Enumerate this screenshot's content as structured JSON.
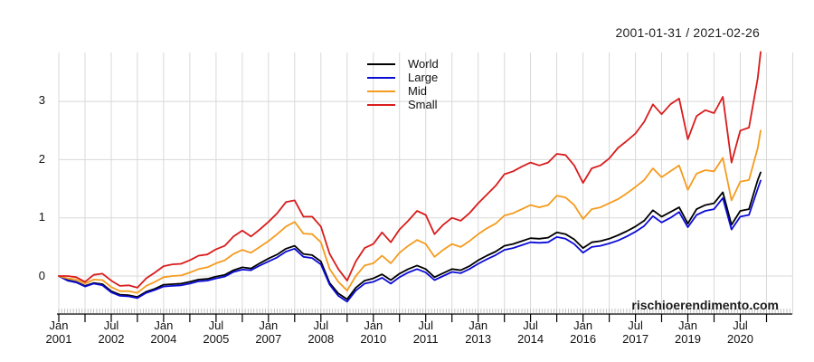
{
  "title": "2001-01-31 / 2021-02-26",
  "watermark": "rischioerendimento.com",
  "chart_data": {
    "type": "line",
    "title": "2001-01-31 / 2021-02-26",
    "xlabel": "",
    "ylabel": "",
    "grid": true,
    "legend_position": "top-center",
    "ylim": [
      -0.65,
      3.85
    ],
    "y_ticks": [
      "0",
      "1",
      "2",
      "3"
    ],
    "y_tick_values": [
      0,
      1,
      2,
      3
    ],
    "x_range_months_since_2001_01": [
      0,
      241
    ],
    "x_sample": {
      "start": 0,
      "step": 3,
      "count": 81,
      "final_month": 241
    },
    "x_ticks": [
      {
        "m": 0,
        "line1": "Jan",
        "line2": "2001"
      },
      {
        "m": 18,
        "line1": "Jul",
        "line2": "2002"
      },
      {
        "m": 36,
        "line1": "Jan",
        "line2": "2004"
      },
      {
        "m": 54,
        "line1": "Jul",
        "line2": "2005"
      },
      {
        "m": 72,
        "line1": "Jan",
        "line2": "2007"
      },
      {
        "m": 90,
        "line1": "Jul",
        "line2": "2008"
      },
      {
        "m": 108,
        "line1": "Jan",
        "line2": "2010"
      },
      {
        "m": 126,
        "line1": "Jul",
        "line2": "2011"
      },
      {
        "m": 144,
        "line1": "Jan",
        "line2": "2013"
      },
      {
        "m": 162,
        "line1": "Jul",
        "line2": "2014"
      },
      {
        "m": 180,
        "line1": "Jan",
        "line2": "2016"
      },
      {
        "m": 198,
        "line1": "Jul",
        "line2": "2017"
      },
      {
        "m": 216,
        "line1": "Jan",
        "line2": "2019"
      },
      {
        "m": 234,
        "line1": "Jul",
        "line2": "2020"
      }
    ],
    "colors": {
      "grid": "#d8d8d8",
      "axis": "#000000",
      "minor_tick": "#aaaaaa"
    },
    "series": [
      {
        "name": "World",
        "color": "#000000",
        "values": [
          0.0,
          -0.07,
          -0.1,
          -0.17,
          -0.12,
          -0.14,
          -0.26,
          -0.32,
          -0.33,
          -0.36,
          -0.27,
          -0.22,
          -0.15,
          -0.14,
          -0.13,
          -0.1,
          -0.06,
          -0.05,
          -0.01,
          0.02,
          0.1,
          0.15,
          0.13,
          0.22,
          0.3,
          0.37,
          0.47,
          0.52,
          0.38,
          0.36,
          0.25,
          -0.12,
          -0.3,
          -0.4,
          -0.2,
          -0.08,
          -0.04,
          0.03,
          -0.07,
          0.04,
          0.12,
          0.18,
          0.12,
          -0.02,
          0.05,
          0.12,
          0.1,
          0.17,
          0.27,
          0.35,
          0.42,
          0.52,
          0.55,
          0.6,
          0.65,
          0.64,
          0.66,
          0.75,
          0.72,
          0.63,
          0.48,
          0.58,
          0.6,
          0.64,
          0.7,
          0.77,
          0.85,
          0.95,
          1.13,
          1.02,
          1.1,
          1.18,
          0.9,
          1.15,
          1.22,
          1.25,
          1.44,
          0.88,
          1.12,
          1.15,
          1.65,
          1.78
        ]
      },
      {
        "name": "Large",
        "color": "#0b0bd6",
        "values": [
          0.0,
          -0.08,
          -0.11,
          -0.18,
          -0.13,
          -0.16,
          -0.28,
          -0.34,
          -0.35,
          -0.38,
          -0.29,
          -0.24,
          -0.18,
          -0.17,
          -0.16,
          -0.13,
          -0.09,
          -0.08,
          -0.04,
          -0.01,
          0.07,
          0.11,
          0.1,
          0.18,
          0.25,
          0.32,
          0.42,
          0.47,
          0.33,
          0.31,
          0.2,
          -0.15,
          -0.34,
          -0.44,
          -0.25,
          -0.13,
          -0.1,
          -0.03,
          -0.13,
          -0.02,
          0.06,
          0.12,
          0.06,
          -0.07,
          0.0,
          0.07,
          0.05,
          0.12,
          0.21,
          0.29,
          0.36,
          0.45,
          0.48,
          0.53,
          0.58,
          0.57,
          0.58,
          0.67,
          0.64,
          0.55,
          0.4,
          0.5,
          0.52,
          0.56,
          0.61,
          0.68,
          0.76,
          0.86,
          1.03,
          0.92,
          1.0,
          1.1,
          0.84,
          1.05,
          1.12,
          1.15,
          1.34,
          0.8,
          1.02,
          1.05,
          1.5,
          1.64
        ]
      },
      {
        "name": "Mid",
        "color": "#f59b1e",
        "values": [
          0.0,
          -0.04,
          -0.06,
          -0.13,
          -0.06,
          -0.07,
          -0.19,
          -0.26,
          -0.26,
          -0.29,
          -0.17,
          -0.1,
          -0.02,
          0.0,
          0.01,
          0.06,
          0.12,
          0.15,
          0.22,
          0.27,
          0.38,
          0.45,
          0.4,
          0.5,
          0.6,
          0.72,
          0.85,
          0.93,
          0.73,
          0.72,
          0.58,
          0.12,
          -0.1,
          -0.25,
          0.0,
          0.18,
          0.22,
          0.35,
          0.22,
          0.4,
          0.52,
          0.62,
          0.55,
          0.33,
          0.45,
          0.55,
          0.5,
          0.6,
          0.72,
          0.82,
          0.9,
          1.04,
          1.08,
          1.15,
          1.22,
          1.18,
          1.22,
          1.38,
          1.35,
          1.22,
          0.98,
          1.15,
          1.18,
          1.25,
          1.32,
          1.42,
          1.53,
          1.65,
          1.85,
          1.7,
          1.8,
          1.9,
          1.48,
          1.76,
          1.82,
          1.8,
          2.03,
          1.3,
          1.62,
          1.65,
          2.2,
          2.5
        ]
      },
      {
        "name": "Small",
        "color": "#d91c1c",
        "values": [
          0.0,
          0.0,
          -0.02,
          -0.1,
          0.02,
          0.04,
          -0.08,
          -0.17,
          -0.16,
          -0.2,
          -0.04,
          0.06,
          0.17,
          0.2,
          0.21,
          0.27,
          0.35,
          0.37,
          0.46,
          0.52,
          0.68,
          0.78,
          0.68,
          0.8,
          0.93,
          1.08,
          1.27,
          1.3,
          1.02,
          1.02,
          0.85,
          0.38,
          0.12,
          -0.08,
          0.25,
          0.48,
          0.55,
          0.75,
          0.58,
          0.8,
          0.95,
          1.12,
          1.05,
          0.72,
          0.88,
          1.0,
          0.95,
          1.08,
          1.25,
          1.4,
          1.55,
          1.75,
          1.8,
          1.88,
          1.95,
          1.9,
          1.95,
          2.1,
          2.08,
          1.9,
          1.6,
          1.85,
          1.9,
          2.02,
          2.2,
          2.32,
          2.45,
          2.65,
          2.95,
          2.78,
          2.95,
          3.05,
          2.35,
          2.75,
          2.85,
          2.8,
          3.08,
          1.95,
          2.5,
          2.55,
          3.4,
          3.85
        ]
      }
    ]
  }
}
